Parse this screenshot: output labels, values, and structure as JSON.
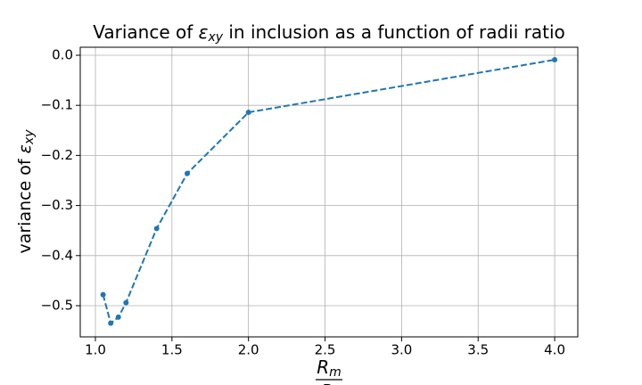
{
  "chart_data": {
    "type": "line",
    "title": {
      "before": "Variance of ",
      "symbol": "ε",
      "subscript": "xy",
      "after": " in inclusion as a function of radii ratio"
    },
    "y_label": {
      "before": "variance of ",
      "symbol": "ε",
      "subscript": "xy"
    },
    "x_label": {
      "numerator": "R",
      "numerator_subscript": "m",
      "denominator": "R",
      "denominator_subscript": "i"
    },
    "x": [
      1.05,
      1.1,
      1.15,
      1.2,
      1.4,
      1.6,
      2.0,
      4.0
    ],
    "series": [
      {
        "color": "#1f77b4",
        "values": [
          -0.478,
          -0.535,
          -0.523,
          -0.494,
          -0.346,
          -0.236,
          -0.114,
          -0.009
        ]
      }
    ],
    "line_style": "dashed",
    "markers": true,
    "xlim": [
      0.901,
      4.151
    ],
    "ylim": [
      -0.5623,
      0.016
    ],
    "xticks": [
      {
        "value": 1.0,
        "label": "1.0"
      },
      {
        "value": 1.5,
        "label": "1.5"
      },
      {
        "value": 2.0,
        "label": "2.0"
      },
      {
        "value": 2.5,
        "label": "2.5"
      },
      {
        "value": 3.0,
        "label": "3.0"
      },
      {
        "value": 3.5,
        "label": "3.5"
      },
      {
        "value": 4.0,
        "label": "4.0"
      }
    ],
    "yticks": [
      {
        "value": -0.5,
        "label": "−0.5"
      },
      {
        "value": -0.4,
        "label": "−0.4"
      },
      {
        "value": -0.3,
        "label": "−0.3"
      },
      {
        "value": -0.2,
        "label": "−0.2"
      },
      {
        "value": -0.1,
        "label": "−0.1"
      },
      {
        "value": 0.0,
        "label": "0.0"
      }
    ],
    "grid": true
  }
}
